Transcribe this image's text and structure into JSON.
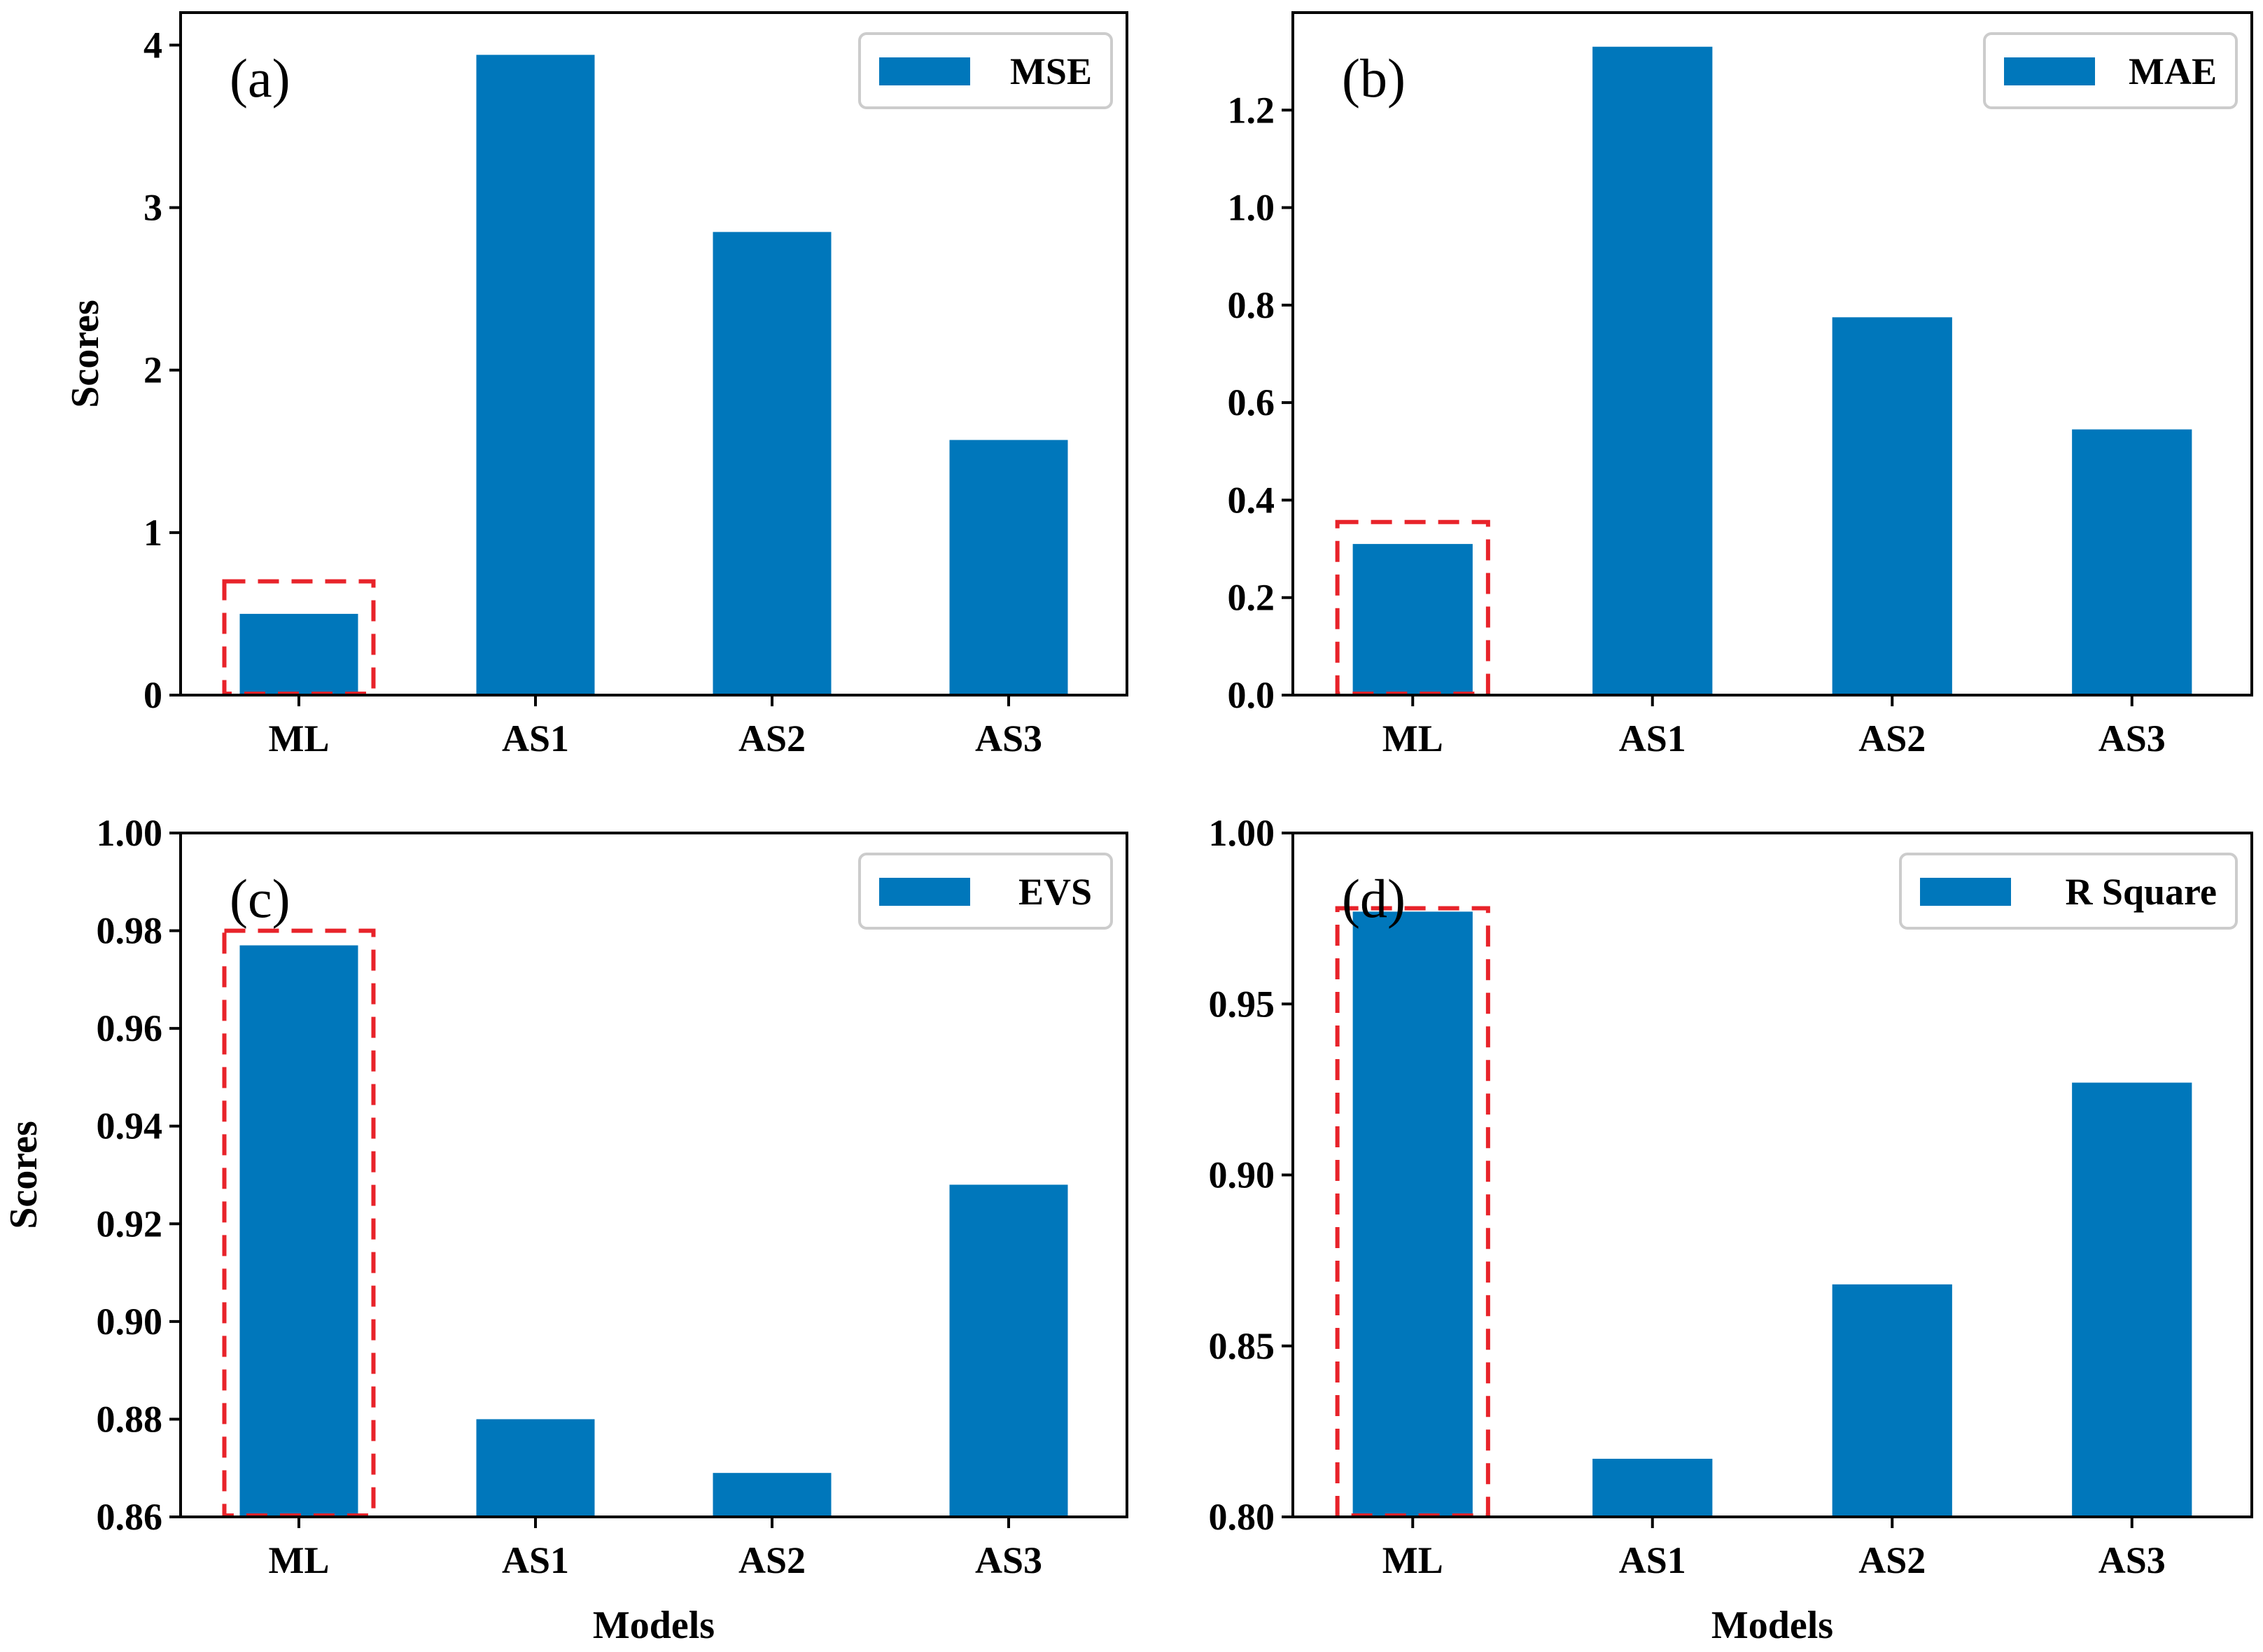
{
  "colors": {
    "bar": "#0077bb",
    "highlight": "#e8232a",
    "axis": "#000000",
    "legend_border": "#cccccc"
  },
  "chart_data": [
    {
      "type": "bar",
      "panel_label": "(a)",
      "legend": "MSE",
      "categories": [
        "ML",
        "AS1",
        "AS2",
        "AS3"
      ],
      "values": [
        0.5,
        3.94,
        2.85,
        1.57
      ],
      "ylim": [
        0,
        4.2
      ],
      "yticks": [
        0,
        1,
        2,
        3,
        4
      ],
      "ytick_labels": [
        "0",
        "1",
        "2",
        "3",
        "4"
      ],
      "ylabel": "Scores",
      "xlabel": "",
      "highlight": {
        "category": "ML",
        "y_top": 0.7
      }
    },
    {
      "type": "bar",
      "panel_label": "(b)",
      "legend": "MAE",
      "categories": [
        "ML",
        "AS1",
        "AS2",
        "AS3"
      ],
      "values": [
        0.31,
        1.33,
        0.775,
        0.545
      ],
      "ylim": [
        0,
        1.4
      ],
      "yticks": [
        0,
        0.2,
        0.4,
        0.6,
        0.8,
        1.0,
        1.2
      ],
      "ytick_labels": [
        "0.0",
        "0.2",
        "0.4",
        "0.6",
        "0.8",
        "1.0",
        "1.2"
      ],
      "ylabel": "",
      "xlabel": "",
      "highlight": {
        "category": "ML",
        "y_top": 0.355
      }
    },
    {
      "type": "bar",
      "panel_label": "(c)",
      "legend": "EVS",
      "categories": [
        "ML",
        "AS1",
        "AS2",
        "AS3"
      ],
      "values": [
        0.977,
        0.88,
        0.869,
        0.928
      ],
      "ylim": [
        0.86,
        1.0
      ],
      "yticks": [
        0.86,
        0.88,
        0.9,
        0.92,
        0.94,
        0.96,
        0.98,
        1.0
      ],
      "ytick_labels": [
        "0.86",
        "0.88",
        "0.90",
        "0.92",
        "0.94",
        "0.96",
        "0.98",
        "1.00"
      ],
      "ylabel": "Scores",
      "xlabel": "Models",
      "highlight": {
        "category": "ML",
        "y_top": 0.98
      }
    },
    {
      "type": "bar",
      "panel_label": "(d)",
      "legend": "R Square",
      "categories": [
        "ML",
        "AS1",
        "AS2",
        "AS3"
      ],
      "values": [
        0.977,
        0.817,
        0.868,
        0.927
      ],
      "ylim": [
        0.8,
        1.0
      ],
      "yticks": [
        0.8,
        0.85,
        0.9,
        0.95,
        1.0
      ],
      "ytick_labels": [
        "0.80",
        "0.85",
        "0.90",
        "0.95",
        "1.00"
      ],
      "ylabel": "",
      "xlabel": "Models",
      "highlight": {
        "category": "ML",
        "y_top": 0.978
      }
    }
  ]
}
